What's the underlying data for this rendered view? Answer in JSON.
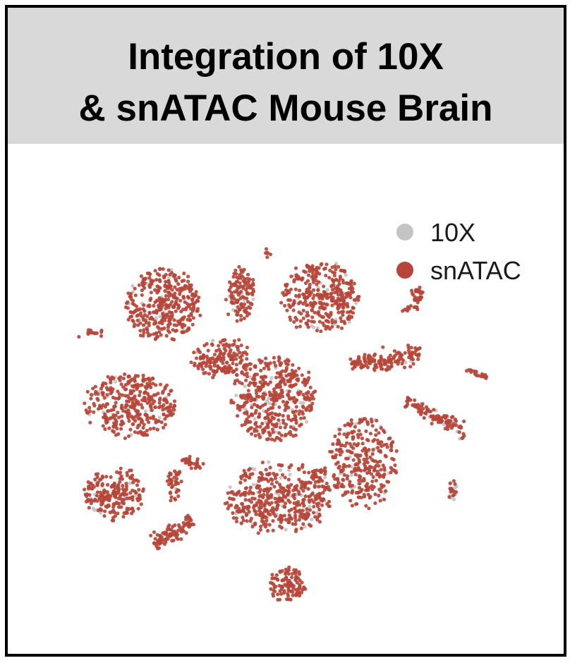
{
  "colors": {
    "10X": "#c4c4c4",
    "snATAC": "#b6463a",
    "title_band": "#d9d9d9",
    "frame": "#000000"
  },
  "chart_data": {
    "type": "scatter",
    "title_lines": [
      "Integration of 10X",
      "& snATAC Mouse Brain"
    ],
    "xlabel": "",
    "ylabel": "",
    "axes_visible": false,
    "grid": false,
    "legend_position": "top-right",
    "series": [
      {
        "name": "10X",
        "color": "#c4c4c4",
        "draw_order": 0
      },
      {
        "name": "snATAC",
        "color": "#b6463a",
        "draw_order": 1
      }
    ],
    "clusters": [
      {
        "x": 232,
        "y": 433,
        "rx": 52,
        "ry": 52,
        "n": 380,
        "mix": 0.1,
        "shape": "blob"
      },
      {
        "x": 342,
        "y": 418,
        "rx": 18,
        "ry": 38,
        "n": 120,
        "mix": 0.08,
        "shape": "blob"
      },
      {
        "x": 455,
        "y": 422,
        "rx": 55,
        "ry": 50,
        "n": 360,
        "mix": 0.08,
        "shape": "blob"
      },
      {
        "x": 378,
        "y": 358,
        "rx": 5,
        "ry": 6,
        "n": 6,
        "mix": 0.0,
        "shape": "blob"
      },
      {
        "x": 130,
        "y": 472,
        "rx": 20,
        "ry": 3,
        "n": 14,
        "mix": 0.0,
        "shape": "blob"
      },
      {
        "x": 315,
        "y": 508,
        "rx": 42,
        "ry": 28,
        "n": 170,
        "mix": 0.05,
        "shape": "blob"
      },
      {
        "x": 185,
        "y": 575,
        "rx": 65,
        "ry": 45,
        "n": 360,
        "mix": 0.05,
        "shape": "blob"
      },
      {
        "x": 388,
        "y": 565,
        "rx": 58,
        "ry": 60,
        "n": 440,
        "mix": 0.12,
        "shape": "blob"
      },
      {
        "x": 515,
        "y": 655,
        "rx": 48,
        "ry": 65,
        "n": 320,
        "mix": 0.1,
        "shape": "blob"
      },
      {
        "x": 395,
        "y": 705,
        "rx": 75,
        "ry": 50,
        "n": 460,
        "mix": 0.1,
        "shape": "blob"
      },
      {
        "x": 162,
        "y": 700,
        "rx": 42,
        "ry": 35,
        "n": 220,
        "mix": 0.08,
        "shape": "blob"
      },
      {
        "x": 408,
        "y": 828,
        "rx": 26,
        "ry": 24,
        "n": 110,
        "mix": 0.0,
        "shape": "blob"
      },
      {
        "x": 248,
        "y": 685,
        "rx": 10,
        "ry": 25,
        "n": 40,
        "mix": 0.1,
        "shape": "blob"
      },
      {
        "x": 642,
        "y": 697,
        "rx": 5,
        "ry": 15,
        "n": 24,
        "mix": 0.35,
        "shape": "blob"
      },
      {
        "x": 592,
        "y": 415,
        "rx": 10,
        "ry": 12,
        "n": 30,
        "mix": 0.0,
        "shape": "blob"
      },
      {
        "x1": 498,
        "y1": 518,
        "x2": 597,
        "y2": 502,
        "w": 12,
        "n": 150,
        "mix": 0.04,
        "shape": "band"
      },
      {
        "x1": 574,
        "y1": 570,
        "x2": 662,
        "y2": 612,
        "w": 9,
        "n": 120,
        "mix": 0.12,
        "shape": "band"
      },
      {
        "x1": 658,
        "y1": 522,
        "x2": 690,
        "y2": 537,
        "w": 4,
        "n": 22,
        "mix": 0.15,
        "shape": "band"
      },
      {
        "x1": 218,
        "y1": 770,
        "x2": 272,
        "y2": 738,
        "w": 9,
        "n": 90,
        "mix": 0.0,
        "shape": "band"
      },
      {
        "x1": 258,
        "y1": 652,
        "x2": 288,
        "y2": 660,
        "w": 7,
        "n": 30,
        "mix": 0.05,
        "shape": "band"
      },
      {
        "x1": 420,
        "y1": 695,
        "x2": 462,
        "y2": 662,
        "w": 5,
        "n": 28,
        "mix": 0.05,
        "shape": "band"
      },
      {
        "x1": 570,
        "y1": 440,
        "x2": 592,
        "y2": 436,
        "w": 4,
        "n": 12,
        "mix": 0.0,
        "shape": "band"
      }
    ]
  }
}
